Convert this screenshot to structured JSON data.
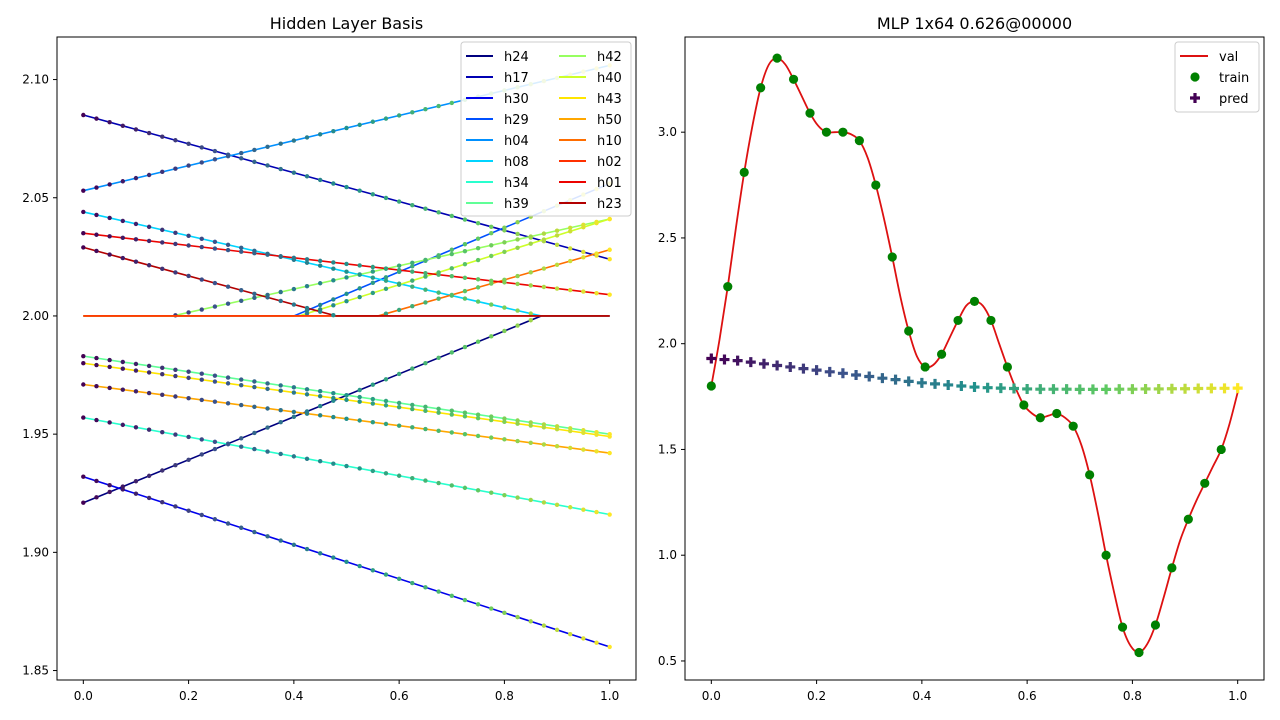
{
  "chart_data": [
    {
      "type": "line",
      "title": "Hidden Layer Basis",
      "xlim": [
        -0.05,
        1.05
      ],
      "ylim": [
        1.846,
        2.118
      ],
      "xticks": [
        "0.0",
        "0.2",
        "0.4",
        "0.6",
        "0.8",
        "1.0"
      ],
      "yticks": [
        "1.85",
        "1.90",
        "1.95",
        "2.00",
        "2.05",
        "2.10"
      ],
      "legend_position": "top-right",
      "point_colormap": "viridis",
      "series": [
        {
          "name": "h24",
          "color": "#00007f",
          "points": [
            [
              0,
              1.921
            ],
            [
              0.87,
              2.0
            ],
            [
              1,
              2.0
            ]
          ]
        },
        {
          "name": "h17",
          "color": "#0000b2",
          "points": [
            [
              0,
              2.085
            ],
            [
              1,
              2.024
            ]
          ]
        },
        {
          "name": "h30",
          "color": "#0000ec",
          "points": [
            [
              0,
              1.932
            ],
            [
              1,
              1.86
            ]
          ]
        },
        {
          "name": "h29",
          "color": "#0050ff",
          "points": [
            [
              0,
              2.0
            ],
            [
              0.4,
              2.0
            ],
            [
              1,
              2.056
            ]
          ]
        },
        {
          "name": "h04",
          "color": "#0090ff",
          "points": [
            [
              0,
              2.053
            ],
            [
              1,
              2.106
            ]
          ]
        },
        {
          "name": "h08",
          "color": "#00d4ff",
          "points": [
            [
              0,
              2.044
            ],
            [
              0.87,
              2.0
            ],
            [
              1,
              2.0
            ]
          ]
        },
        {
          "name": "h34",
          "color": "#29ffce",
          "points": [
            [
              0,
              1.957
            ],
            [
              1,
              1.916
            ]
          ]
        },
        {
          "name": "h39",
          "color": "#60ff97",
          "points": [
            [
              0,
              1.983
            ],
            [
              1,
              1.95
            ]
          ]
        },
        {
          "name": "h42",
          "color": "#97ff60",
          "points": [
            [
              0,
              2.0
            ],
            [
              0.17,
              2.0
            ],
            [
              1,
              2.041
            ]
          ]
        },
        {
          "name": "h40",
          "color": "#ceff29",
          "points": [
            [
              0,
              2.0
            ],
            [
              0.41,
              2.0
            ],
            [
              1,
              2.041
            ]
          ]
        },
        {
          "name": "h43",
          "color": "#ffe500",
          "points": [
            [
              0,
              1.98
            ],
            [
              1,
              1.949
            ]
          ]
        },
        {
          "name": "h50",
          "color": "#ffa700",
          "points": [
            [
              0,
              1.971
            ],
            [
              1,
              1.942
            ]
          ]
        },
        {
          "name": "h10",
          "color": "#ff6d00",
          "points": [
            [
              0,
              2.0
            ],
            [
              0.56,
              2.0
            ],
            [
              1,
              2.028
            ]
          ]
        },
        {
          "name": "h02",
          "color": "#ff3000",
          "points": [
            [
              0,
              2.0
            ],
            [
              1,
              2.0
            ]
          ]
        },
        {
          "name": "h01",
          "color": "#ec0300",
          "points": [
            [
              0,
              2.035
            ],
            [
              1,
              2.009
            ]
          ]
        },
        {
          "name": "h23",
          "color": "#b20000",
          "points": [
            [
              0,
              2.029
            ],
            [
              0.48,
              2.0
            ],
            [
              1,
              2.0
            ]
          ]
        }
      ]
    },
    {
      "type": "line",
      "title": "MLP 1x64 0.626@00000",
      "xlim": [
        -0.05,
        1.05
      ],
      "ylim": [
        0.41,
        3.45
      ],
      "xticks": [
        "0.0",
        "0.2",
        "0.4",
        "0.6",
        "0.8",
        "1.0"
      ],
      "yticks": [
        "0.5",
        "1.0",
        "1.5",
        "2.0",
        "2.5",
        "3.0"
      ],
      "legend_position": "top-right",
      "legend": [
        "val",
        "train",
        "pred"
      ],
      "val_color": "#dd1111",
      "train_color": "#008000",
      "pred_colormap": "viridis",
      "train": {
        "x": [
          0,
          0.03125,
          0.0625,
          0.09375,
          0.125,
          0.15625,
          0.1875,
          0.21875,
          0.25,
          0.28125,
          0.3125,
          0.34375,
          0.375,
          0.40625,
          0.4375,
          0.46875,
          0.5,
          0.53125,
          0.5625,
          0.59375,
          0.625,
          0.65625,
          0.6875,
          0.71875,
          0.75,
          0.78125,
          0.8125,
          0.84375,
          0.875,
          0.90625,
          0.9375,
          0.96875
        ],
        "y": [
          1.8,
          2.27,
          2.81,
          3.21,
          3.35,
          3.25,
          3.09,
          3.0,
          3.0,
          2.96,
          2.75,
          2.41,
          2.06,
          1.89,
          1.95,
          2.11,
          2.2,
          2.11,
          1.89,
          1.71,
          1.65,
          1.67,
          1.61,
          1.38,
          1.0,
          0.66,
          0.54,
          0.67,
          0.94,
          1.17,
          1.34,
          1.5
        ]
      },
      "val": {
        "x": [
          0,
          0.015625,
          0.03125,
          0.046875,
          0.0625,
          0.078125,
          0.09375,
          0.109375,
          0.125,
          0.140625,
          0.15625,
          0.171875,
          0.1875,
          0.203125,
          0.21875,
          0.234375,
          0.25,
          0.265625,
          0.28125,
          0.296875,
          0.3125,
          0.328125,
          0.34375,
          0.359375,
          0.375,
          0.390625,
          0.40625,
          0.421875,
          0.4375,
          0.453125,
          0.46875,
          0.484375,
          0.5,
          0.515625,
          0.53125,
          0.546875,
          0.5625,
          0.578125,
          0.59375,
          0.609375,
          0.625,
          0.640625,
          0.65625,
          0.671875,
          0.6875,
          0.703125,
          0.71875,
          0.734375,
          0.75,
          0.765625,
          0.78125,
          0.796875,
          0.8125,
          0.828125,
          0.84375,
          0.859375,
          0.875,
          0.890625,
          0.90625,
          0.921875,
          0.9375,
          0.953125,
          0.96875,
          0.984375,
          1.0
        ],
        "y": [
          1.8,
          2.02,
          2.27,
          2.55,
          2.81,
          3.03,
          3.21,
          3.32,
          3.35,
          3.32,
          3.25,
          3.17,
          3.09,
          3.03,
          3.0,
          3.0,
          3.0,
          2.99,
          2.96,
          2.88,
          2.75,
          2.59,
          2.41,
          2.22,
          2.06,
          1.94,
          1.89,
          1.9,
          1.95,
          2.03,
          2.11,
          2.18,
          2.2,
          2.18,
          2.11,
          2.0,
          1.89,
          1.79,
          1.71,
          1.67,
          1.65,
          1.66,
          1.67,
          1.65,
          1.61,
          1.52,
          1.38,
          1.2,
          1.0,
          0.82,
          0.66,
          0.57,
          0.54,
          0.58,
          0.67,
          0.8,
          0.94,
          1.07,
          1.17,
          1.26,
          1.34,
          1.42,
          1.5,
          1.62,
          1.77
        ]
      },
      "pred": {
        "x": [
          0,
          0.025,
          0.05,
          0.075,
          0.1,
          0.125,
          0.15,
          0.175,
          0.2,
          0.225,
          0.25,
          0.275,
          0.3,
          0.325,
          0.35,
          0.375,
          0.4,
          0.425,
          0.45,
          0.475,
          0.5,
          0.525,
          0.55,
          0.575,
          0.6,
          0.625,
          0.65,
          0.675,
          0.7,
          0.725,
          0.75,
          0.775,
          0.8,
          0.825,
          0.85,
          0.875,
          0.9,
          0.925,
          0.95,
          0.975,
          1.0
        ],
        "y": [
          1.93,
          1.925,
          1.92,
          1.913,
          1.905,
          1.897,
          1.89,
          1.882,
          1.875,
          1.867,
          1.86,
          1.852,
          1.845,
          1.837,
          1.83,
          1.822,
          1.815,
          1.81,
          1.805,
          1.8,
          1.795,
          1.792,
          1.79,
          1.788,
          1.786,
          1.785,
          1.785,
          1.785,
          1.784,
          1.784,
          1.784,
          1.785,
          1.785,
          1.786,
          1.786,
          1.787,
          1.787,
          1.788,
          1.789,
          1.789,
          1.79
        ]
      }
    }
  ]
}
